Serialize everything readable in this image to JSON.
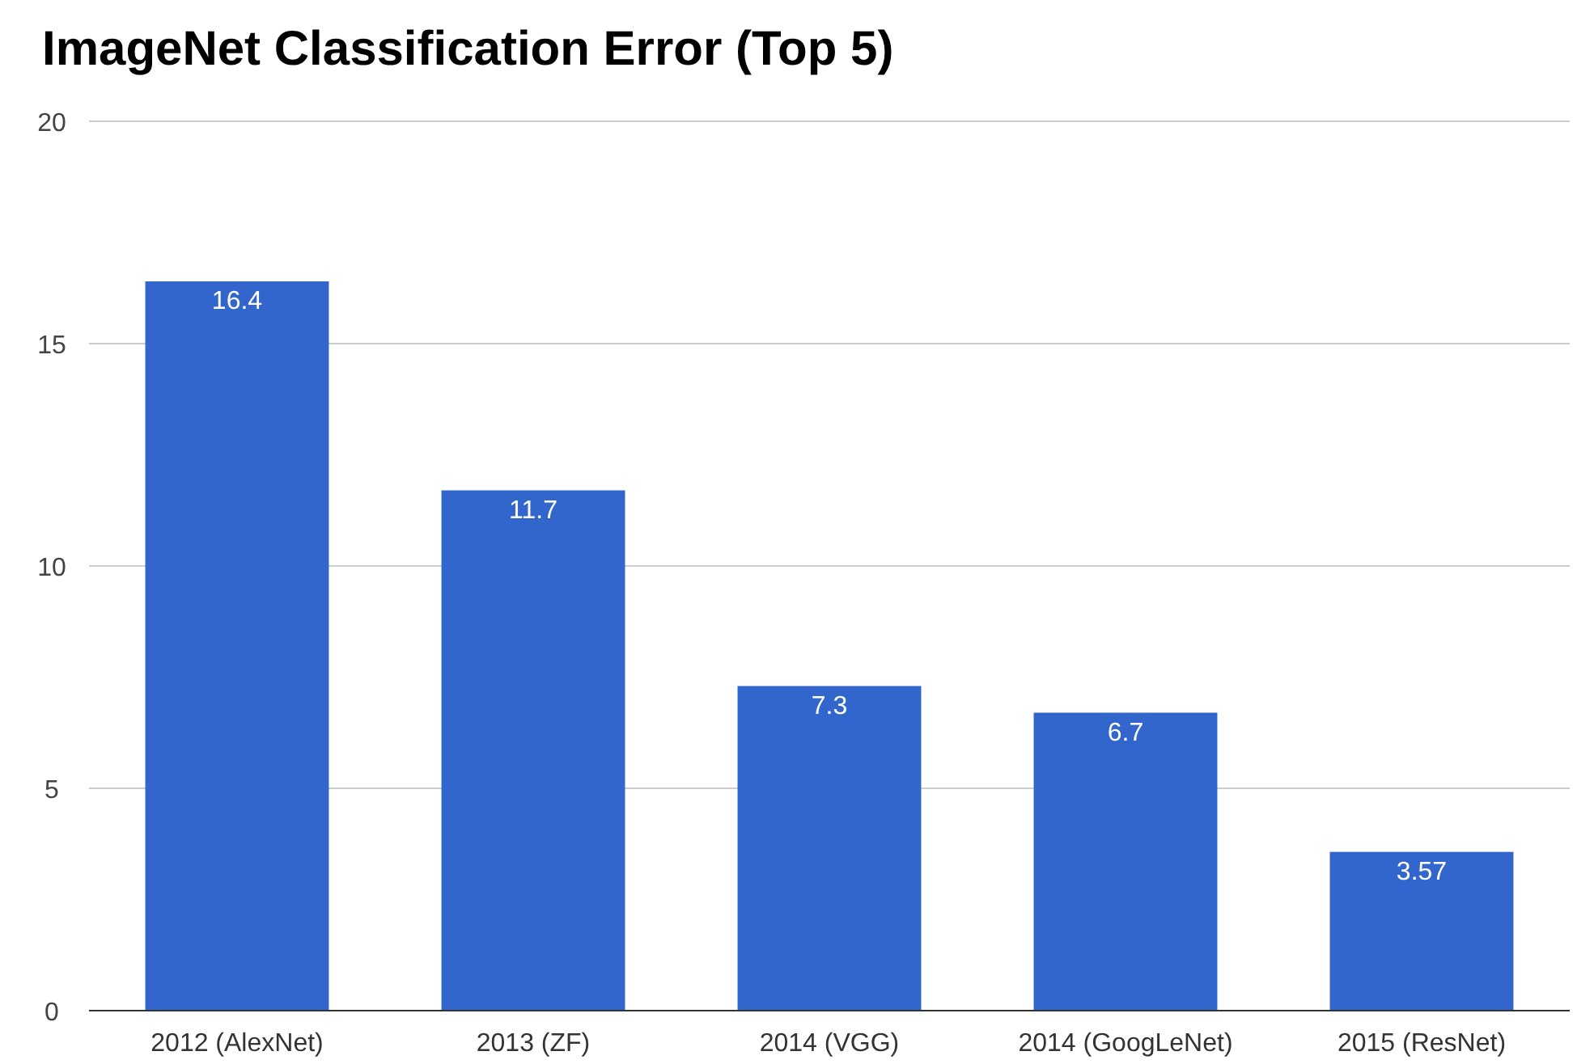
{
  "chart_data": {
    "type": "bar",
    "title": "ImageNet Classification Error (Top 5)",
    "categories": [
      "2012 (AlexNet)",
      "2013 (ZF)",
      "2014 (VGG)",
      "2014 (GoogLeNet)",
      "2015 (ResNet)"
    ],
    "values": [
      16.4,
      11.7,
      7.3,
      6.7,
      3.57
    ],
    "color": "#3366cc",
    "ylim": [
      0,
      20
    ],
    "yticks": [
      0,
      5,
      10,
      15,
      20
    ],
    "grid": "y",
    "data_labels": true
  }
}
